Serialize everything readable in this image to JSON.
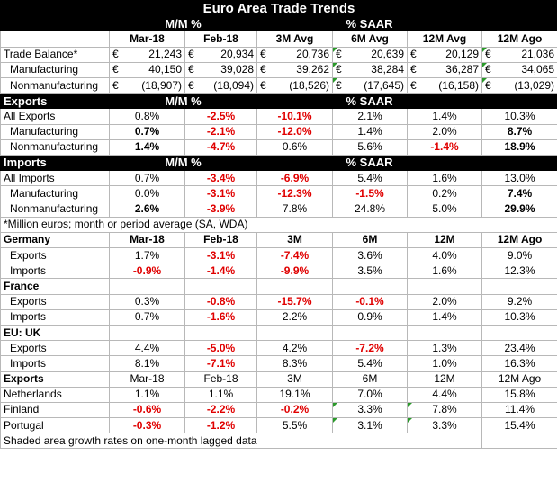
{
  "title": "Euro Area Trade Trends",
  "top_headers": {
    "mm": "M/M %",
    "saar": "% SAAR"
  },
  "col_headers": [
    "Mar-18",
    "Feb-18",
    "3M Avg",
    "6M Avg",
    "12M Avg",
    "12M Ago"
  ],
  "balance_rows": [
    {
      "label": "Trade Balance*",
      "cells": [
        "21,243",
        "20,934",
        "20,736",
        "20,639",
        "20,129",
        "21,036"
      ]
    },
    {
      "label": "Manufacturing",
      "cells": [
        "40,150",
        "39,028",
        "39,262",
        "38,284",
        "36,287",
        "34,065"
      ]
    },
    {
      "label": "Nonmanufacturing",
      "cells": [
        "(18,907)",
        "(18,094)",
        "(18,526)",
        "(17,645)",
        "(16,158)",
        "(13,029)"
      ]
    }
  ],
  "currency_symbol": "€",
  "exports_section": {
    "label": "Exports",
    "mm": "M/M %",
    "saar": "% SAAR",
    "rows": [
      {
        "label": "All Exports",
        "cells": [
          "0.8%",
          "-2.5%",
          "-10.1%",
          "2.1%",
          "1.4%",
          "10.3%"
        ]
      },
      {
        "label": "Manufacturing",
        "cells": [
          "0.7%",
          "-2.1%",
          "-12.0%",
          "1.4%",
          "2.0%",
          "8.7%"
        ]
      },
      {
        "label": "Nonmanufacturing",
        "cells": [
          "1.4%",
          "-4.7%",
          "0.6%",
          "5.6%",
          "-1.4%",
          "18.9%"
        ]
      }
    ]
  },
  "imports_section": {
    "label": "Imports",
    "mm": "M/M %",
    "saar": "% SAAR",
    "rows": [
      {
        "label": "All Imports",
        "cells": [
          "0.7%",
          "-3.4%",
          "-6.9%",
          "5.4%",
          "1.6%",
          "13.0%"
        ]
      },
      {
        "label": "Manufacturing",
        "cells": [
          "0.0%",
          "-3.1%",
          "-12.3%",
          "-1.5%",
          "0.2%",
          "7.4%"
        ]
      },
      {
        "label": "Nonmanufacturing",
        "cells": [
          "2.6%",
          "-3.9%",
          "7.8%",
          "24.8%",
          "5.0%",
          "29.9%"
        ]
      }
    ]
  },
  "footnote": "*Million euros; month or period average (SA, WDA)",
  "country_headers": [
    "Mar-18",
    "Feb-18",
    "3M",
    "6M",
    "12M",
    "12M Ago"
  ],
  "germany": {
    "label": "Germany",
    "rows": [
      {
        "label": "Exports",
        "cells": [
          "1.7%",
          "-3.1%",
          "-7.4%",
          "3.6%",
          "4.0%",
          "9.0%"
        ]
      },
      {
        "label": "Imports",
        "cells": [
          "-0.9%",
          "-1.4%",
          "-9.9%",
          "3.5%",
          "1.6%",
          "12.3%"
        ]
      }
    ]
  },
  "france": {
    "label": "France",
    "rows": [
      {
        "label": "Exports",
        "cells": [
          "0.3%",
          "-0.8%",
          "-15.7%",
          "-0.1%",
          "2.0%",
          "9.2%"
        ]
      },
      {
        "label": "Imports",
        "cells": [
          "0.7%",
          "-1.6%",
          "2.2%",
          "0.9%",
          "1.4%",
          "10.3%"
        ]
      }
    ]
  },
  "uk": {
    "label": "EU: UK",
    "rows": [
      {
        "label": "Exports",
        "cells": [
          "4.4%",
          "-5.0%",
          "4.2%",
          "-7.2%",
          "1.3%",
          "23.4%"
        ]
      },
      {
        "label": "Imports",
        "cells": [
          "8.1%",
          "-7.1%",
          "8.3%",
          "5.4%",
          "1.0%",
          "16.3%"
        ]
      }
    ]
  },
  "exports_by_country": {
    "label": "Exports",
    "headers": [
      "Mar-18",
      "Feb-18",
      "3M",
      "6M",
      "12M",
      "12M Ago"
    ],
    "rows": [
      {
        "label": "Netherlands",
        "cells": [
          "1.1%",
          "1.1%",
          "19.1%",
          "7.0%",
          "4.4%",
          "15.8%"
        ]
      },
      {
        "label": "Finland",
        "cells": [
          "-0.6%",
          "-2.2%",
          "-0.2%",
          "3.3%",
          "7.8%",
          "11.4%"
        ]
      },
      {
        "label": "Portugal",
        "cells": [
          "-0.3%",
          "-1.2%",
          "5.5%",
          "3.1%",
          "3.3%",
          "15.4%"
        ]
      }
    ]
  },
  "bottom_note": "Shaded area growth rates on one-month lagged data",
  "colors": {
    "header_bg": "#000000",
    "negative": "#e00000",
    "shade": "#f2f2f2",
    "marker": "#2a9a2a"
  }
}
